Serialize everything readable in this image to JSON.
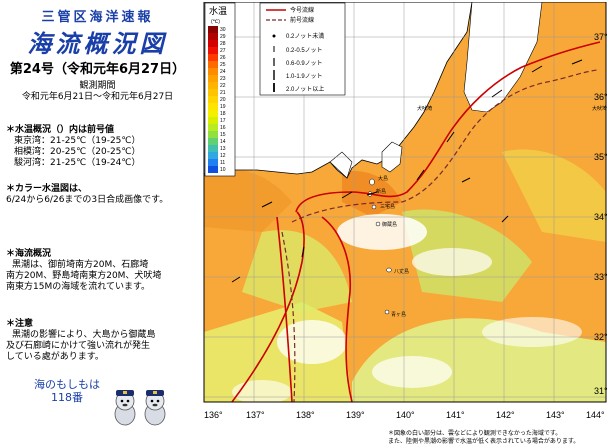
{
  "header": {
    "org": "三管区海洋速報",
    "title": "海流概況図",
    "issue": "第24号（令和元年6月27日）",
    "period_label": "観測期間",
    "period": "令和元年6月21日～令和元年6月27日"
  },
  "temp_summary": {
    "title": "＊水温概況（）内は前号値",
    "lines": [
      "東京湾：21-25℃（19-25℃）",
      "相模湾：20-25℃（20-25℃）",
      "駿河湾：21-25℃（19-24℃）"
    ]
  },
  "sst_note": {
    "lines": [
      "＊カラー水温図は、",
      "6/24から6/26までの3日合成画像です。"
    ]
  },
  "current_summary": {
    "title": "＊海流概況",
    "lines": [
      "黒潮は、御前埼南方20M、石廊埼",
      "南方20M、野島埼南東方20M、犬吠埼",
      "南東方15Mの海域を流れています。"
    ]
  },
  "caution": {
    "title": "＊注意",
    "lines": [
      "黒潮の影響により、大島から御蔵島",
      "及び石廊崎にかけて強い流れが発生",
      "している處があります。"
    ]
  },
  "slogan": {
    "line1": "海のもしもは",
    "line2": "118番"
  },
  "colorbar": {
    "title": "水温",
    "unit": "(℃)",
    "labels": [
      "30",
      "29",
      "28",
      "27",
      "26",
      "25",
      "24",
      "23",
      "22",
      "21",
      "20",
      "19",
      "18",
      "17",
      "16",
      "15",
      "14",
      "13",
      "12",
      "11",
      "10"
    ],
    "colors": [
      "#8b0000",
      "#b00000",
      "#d40000",
      "#ee1000",
      "#ff3a00",
      "#ff6a00",
      "#ff8c00",
      "#ffa200",
      "#ffb400",
      "#ffc400",
      "#ffd400",
      "#ffe400",
      "#f4f000",
      "#d8f000",
      "#b8ec20",
      "#90e040",
      "#60d070",
      "#40c0b0",
      "#30a8e0",
      "#2080f0",
      "#1050e0"
    ]
  },
  "legend": {
    "current_label": "今号流線",
    "previous_label": "前号流線",
    "items": [
      "0.2ノット未満",
      "0.2-0.5ノット",
      "0.6-0.9ノット",
      "1.0-1.9ノット",
      "2.0ノット以上"
    ]
  },
  "map": {
    "lon_labels": [
      "136°",
      "137°",
      "138°",
      "139°",
      "140°",
      "141°",
      "142°",
      "143°",
      "144°"
    ],
    "lat_labels": [
      "37°",
      "36°",
      "35°",
      "34°",
      "33°",
      "32°",
      "31°"
    ],
    "places": [
      "犬吠埼",
      "大島",
      "新島",
      "三宅島",
      "御蔵島",
      "八丈島",
      "青ヶ島",
      "大吠埼"
    ]
  },
  "footnote": {
    "line1": "＊図象の白い部分は、雲などにより観測できなかった海域です。",
    "line2": "また、陸側や黒潮の影響で水温が低く表示されている場合があります。"
  },
  "colors": {
    "kuroshio_current": "#cc0000",
    "title_blue": "#1a3fa8",
    "land": "#ffffff",
    "grid": "#9a9a9a"
  }
}
